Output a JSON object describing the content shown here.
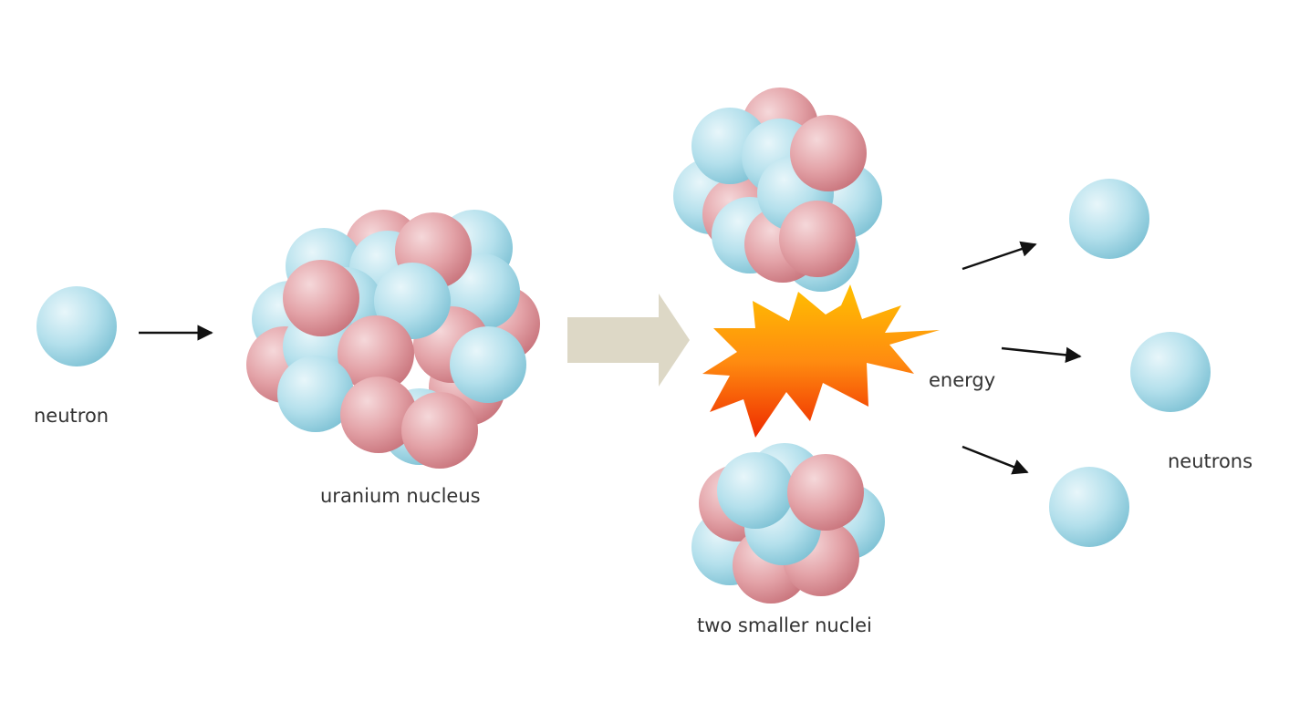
{
  "labels": {
    "neutron": "neutron",
    "uranium_nucleus": "uranium nucleus",
    "energy": "energy",
    "two_smaller_nuclei": "two smaller nuclei",
    "neutrons": "neutrons"
  },
  "colors": {
    "neutron": "#8ecfdf",
    "proton": "#d9868f",
    "process_arrow": "#ddd8c6",
    "arrow": "#111111",
    "burst_outer": "#ffb400",
    "burst_inner": "#f04000",
    "text": "#333333"
  }
}
